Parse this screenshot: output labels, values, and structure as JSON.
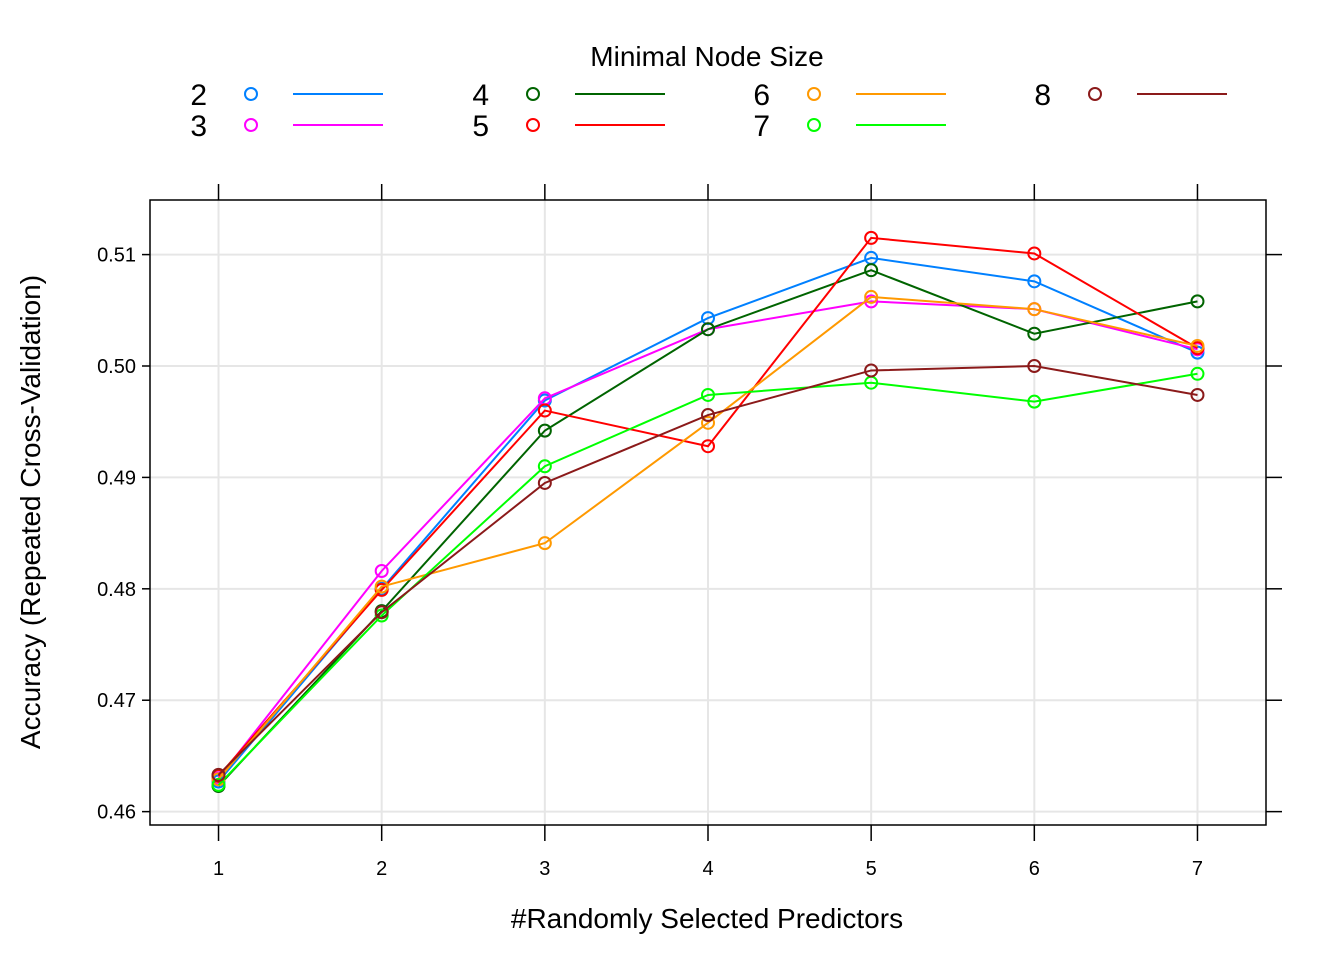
{
  "chart_data": {
    "type": "line",
    "xlabel": "#Randomly Selected Predictors",
    "ylabel": "Accuracy (Repeated Cross-Validation)",
    "legend_title": "Minimal Node Size",
    "legend_position": "top",
    "grid": true,
    "x": [
      1,
      2,
      3,
      4,
      5,
      6,
      7
    ],
    "x_tick_labels": [
      "1",
      "2",
      "3",
      "4",
      "5",
      "6",
      "7"
    ],
    "y_tick_labels": [
      "0.46",
      "0.47",
      "0.48",
      "0.49",
      "0.50",
      "0.51"
    ],
    "y_ticks": [
      0.46,
      0.47,
      0.48,
      0.49,
      0.5,
      0.51
    ],
    "xlim": [
      0.58,
      7.42
    ],
    "ylim": [
      0.4588,
      0.5149
    ],
    "series": [
      {
        "name": "2",
        "color": "#0080ff",
        "values": [
          0.4627,
          0.48,
          0.4969,
          0.5043,
          0.5097,
          0.5076,
          0.5012
        ]
      },
      {
        "name": "3",
        "color": "#ff00ff",
        "values": [
          0.463,
          0.4816,
          0.4971,
          0.5033,
          0.5058,
          0.5051,
          0.5015
        ]
      },
      {
        "name": "4",
        "color": "#006400",
        "values": [
          0.4623,
          0.478,
          0.4942,
          0.5033,
          0.5086,
          0.5029,
          0.5058
        ]
      },
      {
        "name": "5",
        "color": "#ff0000",
        "values": [
          0.4632,
          0.4799,
          0.496,
          0.4928,
          0.5115,
          0.5101,
          0.5016
        ]
      },
      {
        "name": "6",
        "color": "#ff9900",
        "values": [
          0.4629,
          0.4802,
          0.4841,
          0.4949,
          0.5062,
          0.5051,
          0.5018
        ]
      },
      {
        "name": "7",
        "color": "#00ff00",
        "values": [
          0.4624,
          0.4776,
          0.491,
          0.4974,
          0.4985,
          0.4968,
          0.4993
        ]
      },
      {
        "name": "8",
        "color": "#8b1a1a",
        "values": [
          0.4633,
          0.4779,
          0.4895,
          0.4956,
          0.4996,
          0.5,
          0.4974
        ]
      }
    ]
  }
}
